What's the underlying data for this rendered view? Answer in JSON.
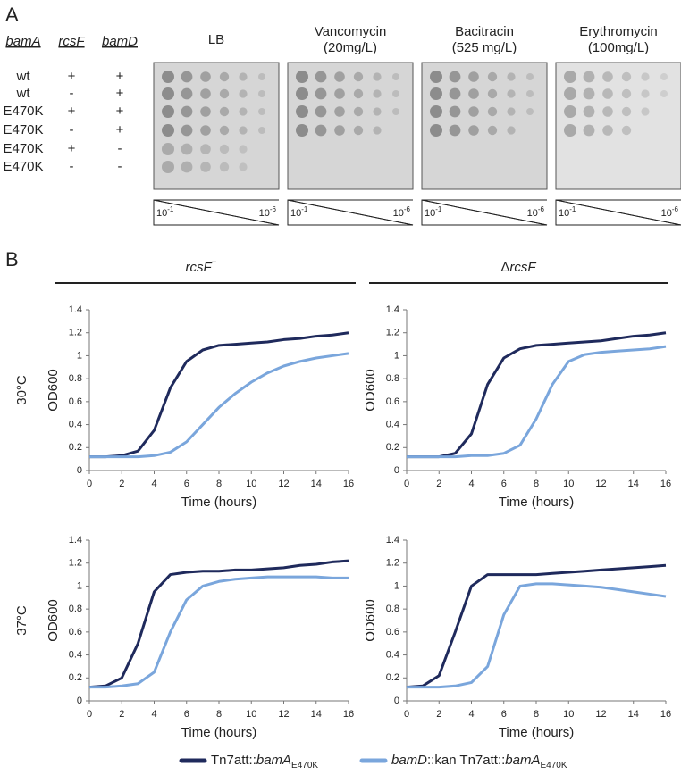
{
  "panel_a": {
    "label": "A",
    "headers": [
      "bamA",
      "rcsF",
      "bamD"
    ],
    "rows": [
      [
        "wt",
        "+",
        "+"
      ],
      [
        "wt",
        "-",
        "+"
      ],
      [
        "E470K",
        "+",
        "+"
      ],
      [
        "E470K",
        "-",
        "+"
      ],
      [
        "E470K",
        "+",
        "-"
      ],
      [
        "E470K",
        "-",
        "-"
      ]
    ],
    "plates": [
      {
        "title": [
          "LB"
        ],
        "spots": [
          6,
          6,
          6,
          6,
          5,
          5
        ]
      },
      {
        "title": [
          "Vancomycin",
          "(20mg/L)"
        ],
        "spots": [
          6,
          6,
          6,
          5,
          0,
          0
        ]
      },
      {
        "title": [
          "Bacitracin",
          "(525 mg/L)"
        ],
        "spots": [
          6,
          6,
          6,
          5,
          0,
          0
        ]
      },
      {
        "title": [
          "Erythromycin",
          "(100mg/L)"
        ],
        "spots": [
          6,
          6,
          5,
          4,
          0,
          0
        ]
      }
    ],
    "dilution_start": {
      "base": "10",
      "exp": "-1"
    },
    "dilution_end": {
      "base": "10",
      "exp": "-6"
    }
  },
  "panel_b": {
    "label": "B",
    "columns": [
      [
        {
          "text": "rcsF",
          "style": "italic"
        },
        {
          "text": "+",
          "style": "sup"
        }
      ],
      [
        {
          "text": "Δ",
          "style": "plain"
        },
        {
          "text": "rcsF",
          "style": "italic"
        }
      ]
    ],
    "rows": [
      "30°C",
      "37°C"
    ],
    "legend": [
      {
        "color": "#1f2a5c",
        "parts": [
          {
            "text": "Tn7att::",
            "style": "plain"
          },
          {
            "text": "bamA",
            "style": "italic"
          },
          {
            "text": "E470K",
            "style": "sub"
          }
        ]
      },
      {
        "color": "#7aa6dc",
        "parts": [
          {
            "text": "bamD",
            "style": "italic"
          },
          {
            "text": "::kan Tn7att::",
            "style": "plain"
          },
          {
            "text": "bamA",
            "style": "italic"
          },
          {
            "text": "E470K",
            "style": "sub"
          }
        ]
      }
    ]
  },
  "chart_data": [
    {
      "type": "line",
      "xlabel": "Time (hours)",
      "ylabel": "OD600",
      "x": [
        0,
        1,
        2,
        3,
        4,
        5,
        6,
        7,
        8,
        9,
        10,
        11,
        12,
        13,
        14,
        15,
        16
      ],
      "xlim": [
        0,
        16
      ],
      "xticks": [
        0,
        2,
        4,
        6,
        8,
        10,
        12,
        14,
        16
      ],
      "ylim": [
        0,
        1.4
      ],
      "yticks": [
        0,
        0.2,
        0.4,
        0.6,
        0.8,
        1,
        1.2,
        1.4
      ],
      "series": [
        {
          "color": "#1f2a5c",
          "values": [
            0.12,
            0.12,
            0.13,
            0.17,
            0.35,
            0.72,
            0.95,
            1.05,
            1.09,
            1.1,
            1.11,
            1.12,
            1.14,
            1.15,
            1.17,
            1.18,
            1.2
          ]
        },
        {
          "color": "#7aa6dc",
          "values": [
            0.12,
            0.12,
            0.12,
            0.12,
            0.13,
            0.16,
            0.25,
            0.4,
            0.55,
            0.67,
            0.77,
            0.85,
            0.91,
            0.95,
            0.98,
            1.0,
            1.02
          ]
        }
      ]
    },
    {
      "type": "line",
      "xlabel": "Time (hours)",
      "ylabel": "OD600",
      "x": [
        0,
        1,
        2,
        3,
        4,
        5,
        6,
        7,
        8,
        9,
        10,
        11,
        12,
        13,
        14,
        15,
        16
      ],
      "xlim": [
        0,
        16
      ],
      "xticks": [
        0,
        2,
        4,
        6,
        8,
        10,
        12,
        14,
        16
      ],
      "ylim": [
        0,
        1.4
      ],
      "yticks": [
        0,
        0.2,
        0.4,
        0.6,
        0.8,
        1,
        1.2,
        1.4
      ],
      "series": [
        {
          "color": "#1f2a5c",
          "values": [
            0.12,
            0.12,
            0.12,
            0.15,
            0.32,
            0.75,
            0.98,
            1.06,
            1.09,
            1.1,
            1.11,
            1.12,
            1.13,
            1.15,
            1.17,
            1.18,
            1.2
          ]
        },
        {
          "color": "#7aa6dc",
          "values": [
            0.12,
            0.12,
            0.12,
            0.12,
            0.13,
            0.13,
            0.15,
            0.22,
            0.45,
            0.75,
            0.95,
            1.01,
            1.03,
            1.04,
            1.05,
            1.06,
            1.08
          ]
        }
      ]
    },
    {
      "type": "line",
      "xlabel": "Time (hours)",
      "ylabel": "OD600",
      "x": [
        0,
        1,
        2,
        3,
        4,
        5,
        6,
        7,
        8,
        9,
        10,
        11,
        12,
        13,
        14,
        15,
        16
      ],
      "xlim": [
        0,
        16
      ],
      "xticks": [
        0,
        2,
        4,
        6,
        8,
        10,
        12,
        14,
        16
      ],
      "ylim": [
        0,
        1.4
      ],
      "yticks": [
        0,
        0.2,
        0.4,
        0.6,
        0.8,
        1,
        1.2,
        1.4
      ],
      "series": [
        {
          "color": "#1f2a5c",
          "values": [
            0.12,
            0.13,
            0.2,
            0.5,
            0.95,
            1.1,
            1.12,
            1.13,
            1.13,
            1.14,
            1.14,
            1.15,
            1.16,
            1.18,
            1.19,
            1.21,
            1.22
          ]
        },
        {
          "color": "#7aa6dc",
          "values": [
            0.12,
            0.12,
            0.13,
            0.15,
            0.25,
            0.6,
            0.88,
            1.0,
            1.04,
            1.06,
            1.07,
            1.08,
            1.08,
            1.08,
            1.08,
            1.07,
            1.07
          ]
        }
      ]
    },
    {
      "type": "line",
      "xlabel": "Time (hours)",
      "ylabel": "OD600",
      "x": [
        0,
        1,
        2,
        3,
        4,
        5,
        6,
        7,
        8,
        9,
        10,
        11,
        12,
        13,
        14,
        15,
        16
      ],
      "xlim": [
        0,
        16
      ],
      "xticks": [
        0,
        2,
        4,
        6,
        8,
        10,
        12,
        14,
        16
      ],
      "ylim": [
        0,
        1.4
      ],
      "yticks": [
        0,
        0.2,
        0.4,
        0.6,
        0.8,
        1,
        1.2,
        1.4
      ],
      "series": [
        {
          "color": "#1f2a5c",
          "values": [
            0.12,
            0.13,
            0.22,
            0.6,
            1.0,
            1.1,
            1.1,
            1.1,
            1.1,
            1.11,
            1.12,
            1.13,
            1.14,
            1.15,
            1.16,
            1.17,
            1.18
          ]
        },
        {
          "color": "#7aa6dc",
          "values": [
            0.12,
            0.12,
            0.12,
            0.13,
            0.16,
            0.3,
            0.75,
            1.0,
            1.02,
            1.02,
            1.01,
            1.0,
            0.99,
            0.97,
            0.95,
            0.93,
            0.91
          ]
        }
      ]
    }
  ]
}
